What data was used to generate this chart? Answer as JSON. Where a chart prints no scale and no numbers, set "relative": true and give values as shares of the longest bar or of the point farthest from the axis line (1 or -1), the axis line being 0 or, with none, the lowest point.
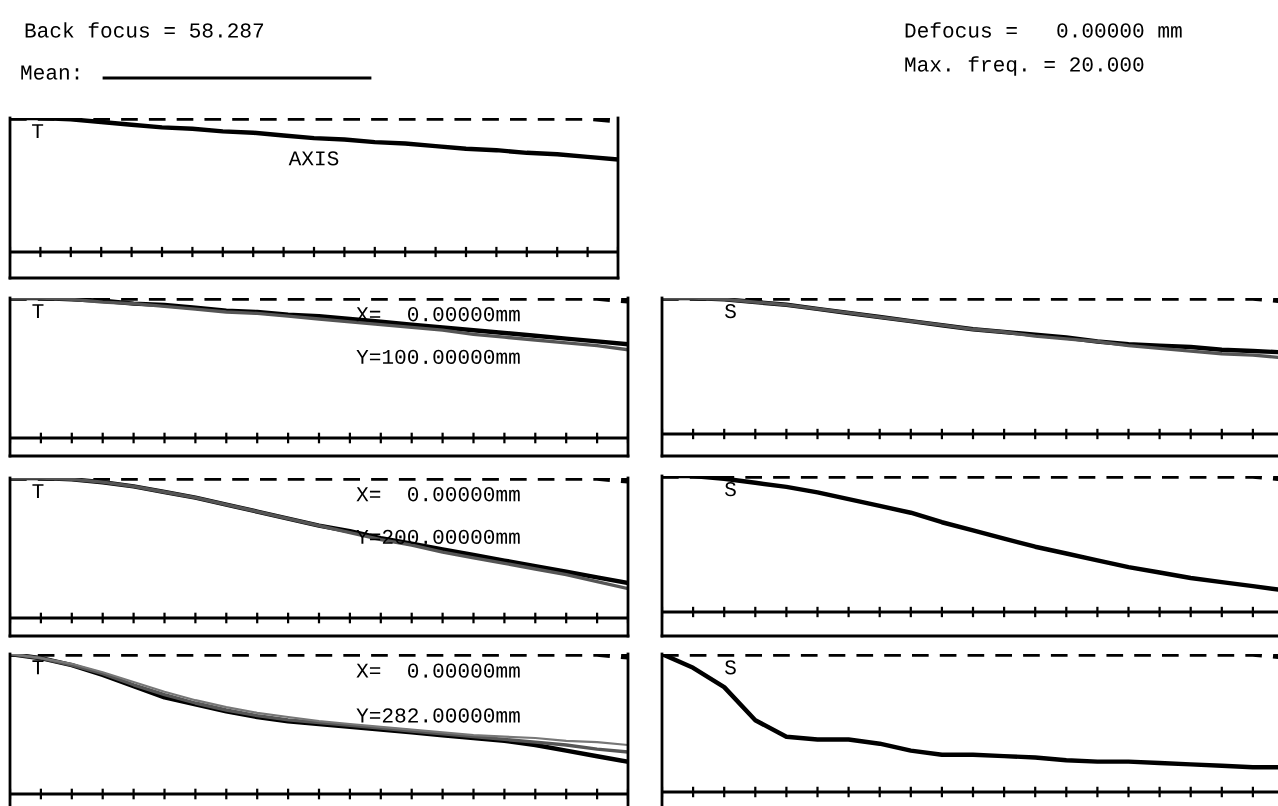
{
  "chart_data": [
    {
      "type": "line",
      "relative": true,
      "annotations": [
        "Back focus = 58.287",
        "Mean:",
        "Defocus =   0.00000 mm",
        "Max. freq. = 20.000",
        "T",
        "AXIS"
      ],
      "categories": [
        null,
        null,
        null,
        null,
        null,
        null,
        null,
        null,
        null,
        null,
        null,
        null,
        null,
        null,
        null,
        null,
        null,
        null,
        null,
        null,
        null
      ],
      "series": [
        {
          "color": "#000000",
          "line_style": "dashed",
          "values": [
            1,
            1,
            1,
            1,
            1,
            1,
            1,
            1,
            1,
            1,
            1,
            1,
            1,
            1,
            1,
            1,
            1,
            1,
            1,
            1,
            0.98
          ]
        },
        {
          "color": "#000000",
          "values": [
            1,
            1,
            0.99,
            0.97,
            0.95,
            0.93,
            0.92,
            0.9,
            0.89,
            0.87,
            0.85,
            0.84,
            0.82,
            0.81,
            0.79,
            0.77,
            0.76,
            0.74,
            0.73,
            0.71,
            0.69
          ]
        }
      ]
    },
    {
      "type": "line",
      "relative": true,
      "annotations": [
        "T",
        "X=  0.00000mm",
        "Y=100.00000mm"
      ],
      "categories": [
        null,
        null,
        null,
        null,
        null,
        null,
        null,
        null,
        null,
        null,
        null,
        null,
        null,
        null,
        null,
        null,
        null,
        null,
        null,
        null,
        null
      ],
      "series": [
        {
          "color": "#000000",
          "line_style": "dashed",
          "values": [
            1,
            1,
            1,
            1,
            1,
            1,
            1,
            1,
            1,
            1,
            1,
            1,
            1,
            1,
            1,
            1,
            1,
            1,
            1,
            1,
            0.98
          ]
        },
        {
          "color": "#000000",
          "values": [
            1,
            1,
            0.99,
            0.98,
            0.96,
            0.95,
            0.93,
            0.91,
            0.9,
            0.88,
            0.87,
            0.85,
            0.83,
            0.81,
            0.79,
            0.77,
            0.75,
            0.73,
            0.71,
            0.69,
            0.67
          ]
        },
        {
          "color": "#555555",
          "values": [
            1,
            1,
            0.99,
            0.97,
            0.96,
            0.94,
            0.92,
            0.9,
            0.89,
            0.87,
            0.85,
            0.83,
            0.81,
            0.79,
            0.77,
            0.74,
            0.72,
            0.7,
            0.68,
            0.66,
            0.63
          ]
        }
      ]
    },
    {
      "type": "line",
      "relative": true,
      "annotations": [
        "S"
      ],
      "categories": [
        null,
        null,
        null,
        null,
        null,
        null,
        null,
        null,
        null,
        null,
        null,
        null,
        null,
        null,
        null,
        null,
        null,
        null,
        null,
        null,
        null
      ],
      "series": [
        {
          "color": "#000000",
          "line_style": "dashed",
          "values": [
            1,
            1,
            1,
            1,
            1,
            1,
            1,
            1,
            1,
            1,
            1,
            1,
            1,
            1,
            1,
            1,
            1,
            1,
            1,
            1,
            0.98
          ]
        },
        {
          "color": "#000000",
          "values": [
            1,
            1,
            0.99,
            0.97,
            0.95,
            0.92,
            0.89,
            0.86,
            0.83,
            0.8,
            0.77,
            0.75,
            0.73,
            0.71,
            0.68,
            0.66,
            0.65,
            0.64,
            0.62,
            0.61,
            0.6
          ]
        },
        {
          "color": "#555555",
          "values": [
            1,
            1,
            0.99,
            0.97,
            0.95,
            0.92,
            0.89,
            0.86,
            0.83,
            0.8,
            0.77,
            0.75,
            0.72,
            0.7,
            0.68,
            0.65,
            0.63,
            0.61,
            0.59,
            0.58,
            0.56
          ]
        }
      ]
    },
    {
      "type": "line",
      "relative": true,
      "annotations": [
        "T",
        "X=  0.00000mm",
        "Y=200.00000mm"
      ],
      "categories": [
        null,
        null,
        null,
        null,
        null,
        null,
        null,
        null,
        null,
        null,
        null,
        null,
        null,
        null,
        null,
        null,
        null,
        null,
        null,
        null,
        null
      ],
      "series": [
        {
          "color": "#000000",
          "line_style": "dashed",
          "values": [
            1,
            1,
            1,
            1,
            1,
            1,
            1,
            1,
            1,
            1,
            1,
            1,
            1,
            1,
            1,
            1,
            1,
            1,
            1,
            1,
            0.98
          ]
        },
        {
          "color": "#000000",
          "values": [
            1,
            1,
            0.99,
            0.97,
            0.94,
            0.9,
            0.86,
            0.81,
            0.76,
            0.71,
            0.66,
            0.62,
            0.57,
            0.53,
            0.49,
            0.45,
            0.41,
            0.37,
            0.33,
            0.29,
            0.25
          ]
        },
        {
          "color": "#555555",
          "values": [
            1,
            1,
            0.99,
            0.97,
            0.94,
            0.9,
            0.86,
            0.81,
            0.76,
            0.71,
            0.66,
            0.61,
            0.56,
            0.52,
            0.47,
            0.43,
            0.39,
            0.35,
            0.31,
            0.26,
            0.21
          ]
        }
      ]
    },
    {
      "type": "line",
      "relative": true,
      "annotations": [
        "S"
      ],
      "categories": [
        null,
        null,
        null,
        null,
        null,
        null,
        null,
        null,
        null,
        null,
        null,
        null,
        null,
        null,
        null,
        null,
        null,
        null,
        null,
        null,
        null
      ],
      "series": [
        {
          "color": "#000000",
          "line_style": "dashed",
          "values": [
            1,
            1,
            1,
            1,
            1,
            1,
            1,
            1,
            1,
            1,
            1,
            1,
            1,
            1,
            1,
            1,
            1,
            1,
            1,
            1,
            0.98
          ]
        },
        {
          "color": "#000000",
          "values": [
            1,
            1,
            0.98,
            0.95,
            0.92,
            0.88,
            0.83,
            0.78,
            0.73,
            0.66,
            0.6,
            0.54,
            0.48,
            0.43,
            0.38,
            0.33,
            0.29,
            0.25,
            0.22,
            0.19,
            0.16
          ]
        }
      ]
    },
    {
      "type": "line",
      "relative": true,
      "annotations": [
        "T",
        "X=  0.00000mm",
        "Y=282.00000mm"
      ],
      "categories": [
        null,
        null,
        null,
        null,
        null,
        null,
        null,
        null,
        null,
        null,
        null,
        null,
        null,
        null,
        null,
        null,
        null,
        null,
        null,
        null,
        null
      ],
      "series": [
        {
          "color": "#000000",
          "line_style": "dashed",
          "values": [
            1,
            1,
            1,
            1,
            1,
            1,
            1,
            1,
            1,
            1,
            1,
            1,
            1,
            1,
            1,
            1,
            1,
            1,
            1,
            1,
            0.98
          ]
        },
        {
          "color": "#000000",
          "values": [
            1,
            0.97,
            0.92,
            0.85,
            0.77,
            0.69,
            0.64,
            0.59,
            0.55,
            0.52,
            0.5,
            0.48,
            0.46,
            0.44,
            0.42,
            0.4,
            0.38,
            0.35,
            0.31,
            0.27,
            0.23
          ]
        },
        {
          "color": "#555555",
          "values": [
            1,
            0.97,
            0.92,
            0.86,
            0.78,
            0.71,
            0.65,
            0.6,
            0.56,
            0.53,
            0.51,
            0.49,
            0.47,
            0.45,
            0.43,
            0.41,
            0.39,
            0.37,
            0.35,
            0.32,
            0.3
          ]
        },
        {
          "color": "#777777",
          "values": [
            1,
            0.97,
            0.93,
            0.87,
            0.8,
            0.73,
            0.67,
            0.62,
            0.58,
            0.55,
            0.52,
            0.5,
            0.48,
            0.46,
            0.44,
            0.42,
            0.41,
            0.4,
            0.38,
            0.37,
            0.35
          ]
        }
      ]
    },
    {
      "type": "line",
      "relative": true,
      "annotations": [
        "S"
      ],
      "categories": [
        null,
        null,
        null,
        null,
        null,
        null,
        null,
        null,
        null,
        null,
        null,
        null,
        null,
        null,
        null,
        null,
        null,
        null,
        null,
        null,
        null
      ],
      "series": [
        {
          "color": "#000000",
          "line_style": "dashed",
          "values": [
            1,
            1,
            1,
            1,
            1,
            1,
            1,
            1,
            1,
            1,
            1,
            1,
            1,
            1,
            1,
            1,
            1,
            1,
            1,
            1,
            0.98
          ]
        },
        {
          "color": "#000000",
          "values": [
            1,
            0.9,
            0.76,
            0.52,
            0.4,
            0.38,
            0.38,
            0.35,
            0.3,
            0.27,
            0.27,
            0.26,
            0.25,
            0.23,
            0.22,
            0.22,
            0.21,
            0.2,
            0.19,
            0.18,
            0.18
          ]
        }
      ]
    }
  ]
}
